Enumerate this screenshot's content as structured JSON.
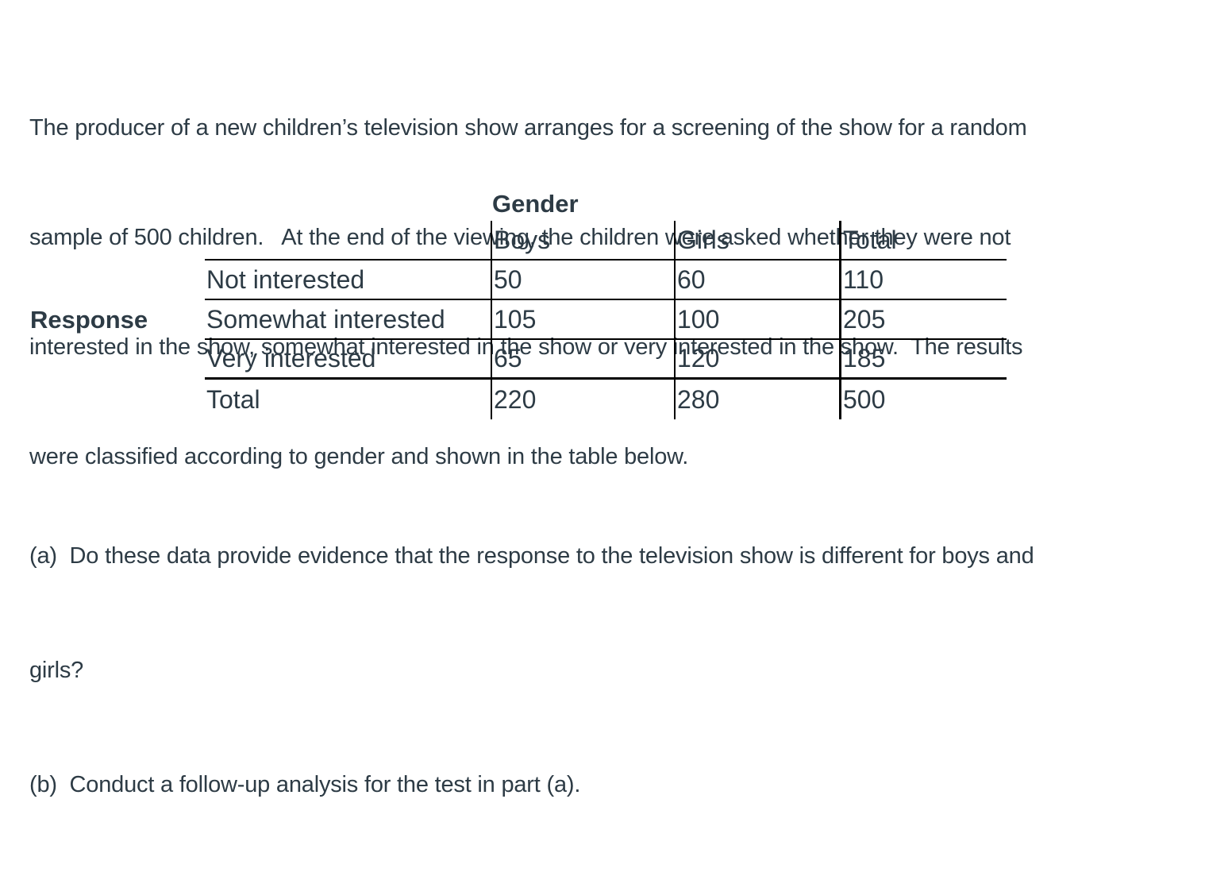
{
  "colors": {
    "text": "#2D3B45",
    "table_line": "#000000",
    "background": "#FFFFFF"
  },
  "problem": {
    "lines": [
      "The producer of a new children’s television show arranges for a screening of the show for a random",
      "sample of 500 children.   At the end of the viewing, the children were asked whether they were not",
      "interested in the show, somewhat interested in the show or very interested in the show.  The results",
      "were classified according to gender and shown in the table below."
    ]
  },
  "table": {
    "column_group_label": "Gender",
    "row_group_label": "Response",
    "column_headers": [
      "Boys",
      "Girls",
      "Total"
    ],
    "rows": [
      {
        "label": "Not interested",
        "boys": "50",
        "girls": "60",
        "total": "110"
      },
      {
        "label": "Somewhat interested",
        "boys": "105",
        "girls": "100",
        "total": "205"
      },
      {
        "label": "Very interested",
        "boys": "65",
        "girls": "120",
        "total": "185"
      },
      {
        "label": "Total",
        "boys": "220",
        "girls": "280",
        "total": "500"
      }
    ]
  },
  "questions": {
    "part_a_line1": "(a)  Do these data provide evidence that the response to the television show is different for boys and",
    "part_a_line2": "girls?",
    "part_b": "(b)  Conduct a follow-up analysis for the test in part (a)."
  }
}
